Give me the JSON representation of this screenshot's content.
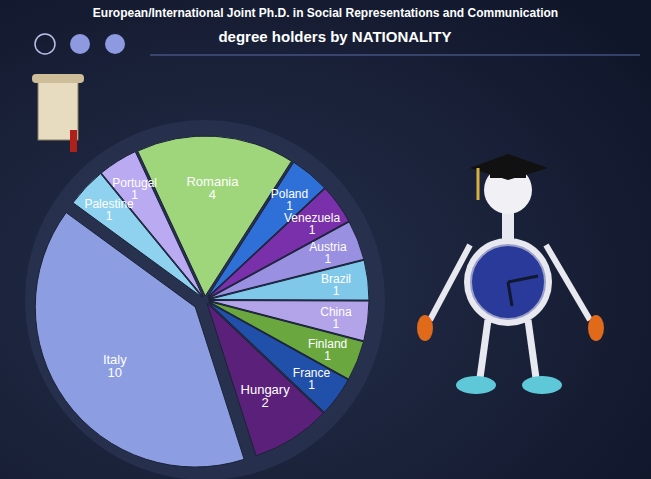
{
  "chart_data": {
    "type": "pie",
    "title": "European/International Joint Ph.D. in Social Representations and Communication",
    "subtitle": "degree holders by NATIONALITY",
    "categories": [
      "Romania",
      "Poland",
      "Venezuela",
      "Austria",
      "Brazil",
      "China",
      "Finland",
      "France",
      "Hungary",
      "Italy",
      "Palestine",
      "Portugal"
    ],
    "values": [
      4,
      1,
      1,
      1,
      1,
      1,
      1,
      1,
      2,
      10,
      1,
      1
    ],
    "colors": [
      "#9fd67c",
      "#2f6fd8",
      "#7a30aa",
      "#9a90e2",
      "#7fc8ea",
      "#b3a4ea",
      "#6aa83f",
      "#2150aa",
      "#5b2079",
      "#8c9de2",
      "#8fd2f0",
      "#baaaf2"
    ],
    "data_labels": true
  }
}
